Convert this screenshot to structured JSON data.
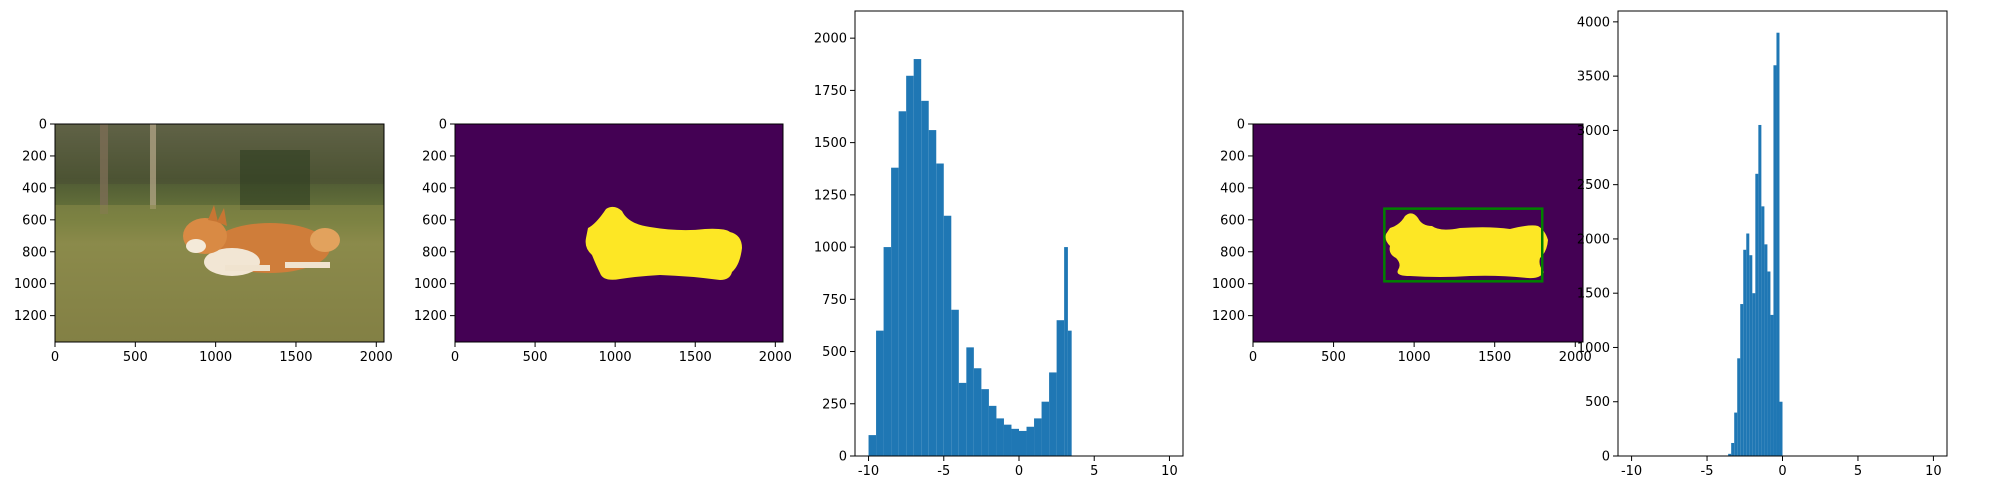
{
  "colors": {
    "hist": "#1f77b4",
    "mask_bg": "#440154",
    "mask_fg": "#fde725",
    "bbox": "#008000",
    "axis": "#000000"
  },
  "chart_data": [
    {
      "type": "image",
      "content": "photo of a corgi running on grass",
      "xlim": [
        0,
        2048
      ],
      "ylim": [
        1365,
        0
      ],
      "xticks": [
        0,
        500,
        1000,
        1500,
        2000
      ],
      "yticks": [
        0,
        200,
        400,
        600,
        800,
        1000,
        1200
      ]
    },
    {
      "type": "heatmap",
      "content": "binary segmentation mask",
      "colormap": "viridis",
      "xlim": [
        0,
        2048
      ],
      "ylim": [
        1365,
        0
      ],
      "xticks": [
        0,
        500,
        1000,
        1500,
        2000
      ],
      "yticks": [
        0,
        200,
        400,
        600,
        800,
        1000,
        1200
      ]
    },
    {
      "type": "bar",
      "kind": "histogram",
      "xlim": [
        -10.9,
        10.9
      ],
      "ylim": [
        0,
        2130
      ],
      "xticks": [
        -10,
        -5,
        0,
        5,
        10
      ],
      "yticks": [
        0,
        250,
        500,
        750,
        1000,
        1250,
        1500,
        1750,
        2000
      ],
      "x": [
        -10,
        -9.5,
        -9,
        -8.5,
        -8,
        -7.5,
        -7,
        -6.5,
        -6,
        -5.5,
        -5,
        -4.5,
        -4,
        -3.5,
        -3,
        -2.5,
        -2,
        -1.5,
        -1,
        -0.5,
        0,
        0.5,
        1,
        1.5,
        2,
        2.5,
        3,
        3.25,
        3.5
      ],
      "y": [
        100,
        600,
        1000,
        1380,
        1650,
        1820,
        1900,
        1700,
        1560,
        1400,
        1150,
        700,
        350,
        520,
        420,
        320,
        240,
        180,
        150,
        130,
        120,
        140,
        180,
        260,
        400,
        650,
        1000,
        600,
        0
      ]
    },
    {
      "type": "heatmap",
      "content": "binary segmentation mask with bounding box",
      "colormap": "viridis",
      "xlim": [
        0,
        2048
      ],
      "ylim": [
        1365,
        0
      ],
      "xticks": [
        0,
        500,
        1000,
        1500,
        2000
      ],
      "yticks": [
        0,
        200,
        400,
        600,
        800,
        1000,
        1200
      ],
      "bbox": {
        "x0": 815,
        "y0": 530,
        "x1": 1795,
        "y1": 985
      }
    },
    {
      "type": "bar",
      "kind": "histogram",
      "xlim": [
        -10.9,
        10.9
      ],
      "ylim": [
        0,
        4100
      ],
      "xticks": [
        -10,
        -5,
        0,
        5,
        10
      ],
      "yticks": [
        0,
        500,
        1000,
        1500,
        2000,
        2500,
        3000,
        3500,
        4000
      ],
      "x": [
        -3.6,
        -3.4,
        -3.2,
        -3.0,
        -2.8,
        -2.6,
        -2.4,
        -2.2,
        -2.0,
        -1.8,
        -1.6,
        -1.4,
        -1.2,
        -1.0,
        -0.8,
        -0.6,
        -0.4,
        -0.2
      ],
      "y": [
        20,
        120,
        400,
        900,
        1400,
        1900,
        2050,
        1850,
        1500,
        2600,
        3050,
        2300,
        1950,
        1700,
        1300,
        3600,
        3900,
        500
      ]
    }
  ]
}
